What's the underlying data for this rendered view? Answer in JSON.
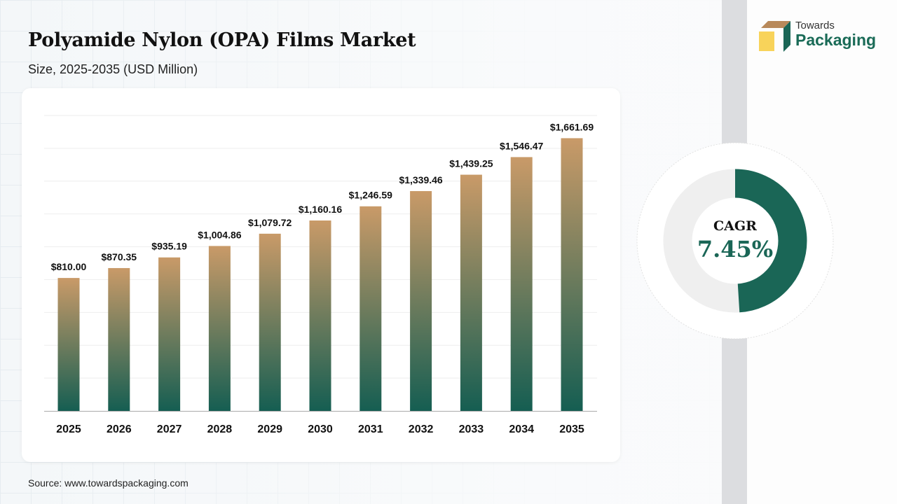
{
  "header": {
    "title": "Polyamide Nylon (OPA) Films Market",
    "subtitle": "Size, 2025-2035 (USD Million)"
  },
  "brand": {
    "line1": "Towards",
    "line2": "Packaging"
  },
  "source": "Source: www.towardspackaging.com",
  "cagr": {
    "label": "CAGR",
    "value": "7.45%",
    "fill_fraction": 0.49,
    "color": "#1a6656",
    "track_color": "#efefef"
  },
  "chart_data": {
    "type": "bar",
    "categories": [
      "2025",
      "2026",
      "2027",
      "2028",
      "2029",
      "2030",
      "2031",
      "2032",
      "2033",
      "2034",
      "2035"
    ],
    "values": [
      810.0,
      870.35,
      935.19,
      1004.86,
      1079.72,
      1160.16,
      1246.59,
      1339.46,
      1439.25,
      1546.47,
      1661.69
    ],
    "labels": [
      "$810.00",
      "$870.35",
      "$935.19",
      "$1,004.86",
      "$1,079.72",
      "$1,160.16",
      "$1,246.59",
      "$1,339.46",
      "$1,439.25",
      "$1,546.47",
      "$1,661.69"
    ],
    "ylim": [
      0,
      1800
    ],
    "grid": true,
    "colors": {
      "top": "#c99a68",
      "bottom": "#155e52"
    }
  }
}
